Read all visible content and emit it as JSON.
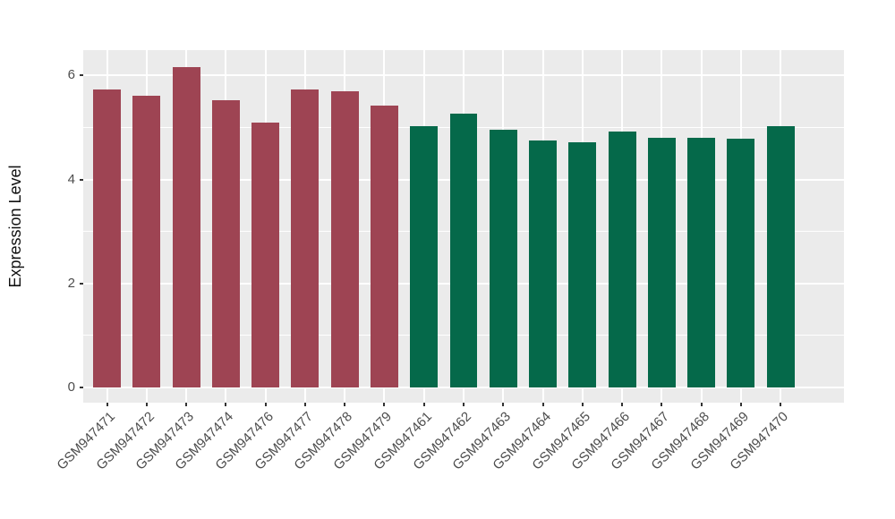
{
  "style": {
    "page_bg": "#FFFFFF",
    "panel_bg": "#EBEBEB",
    "grid_color": "#FFFFFF",
    "tick_mark_color": "#333333",
    "tick_label_color": "#4D4D4D",
    "axis_title_color": "#111111",
    "group_colors": {
      "group_747x": "#9E4453",
      "group_746x": "#05694A"
    }
  },
  "chart_data": {
    "type": "bar",
    "title": "",
    "xlabel": "",
    "ylabel": "Expression Level",
    "ylim": [
      0,
      6.49
    ],
    "yticks": [
      0,
      2,
      4,
      6
    ],
    "yminor": [
      1,
      3,
      5
    ],
    "grid": true,
    "legend": false,
    "x_label_angle": 45,
    "bars": [
      {
        "label": "GSM947471",
        "value": 5.73,
        "color": "#9E4453"
      },
      {
        "label": "GSM947472",
        "value": 5.61,
        "color": "#9E4453"
      },
      {
        "label": "GSM947473",
        "value": 6.16,
        "color": "#9E4453"
      },
      {
        "label": "GSM947474",
        "value": 5.52,
        "color": "#9E4453"
      },
      {
        "label": "GSM947476",
        "value": 5.09,
        "color": "#9E4453"
      },
      {
        "label": "GSM947477",
        "value": 5.73,
        "color": "#9E4453"
      },
      {
        "label": "GSM947478",
        "value": 5.69,
        "color": "#9E4453"
      },
      {
        "label": "GSM947479",
        "value": 5.42,
        "color": "#9E4453"
      },
      {
        "label": "GSM947461",
        "value": 5.03,
        "color": "#05694A"
      },
      {
        "label": "GSM947462",
        "value": 5.27,
        "color": "#05694A"
      },
      {
        "label": "GSM947463",
        "value": 4.96,
        "color": "#05694A"
      },
      {
        "label": "GSM947464",
        "value": 4.75,
        "color": "#05694A"
      },
      {
        "label": "GSM947465",
        "value": 4.71,
        "color": "#05694A"
      },
      {
        "label": "GSM947466",
        "value": 4.92,
        "color": "#05694A"
      },
      {
        "label": "GSM947467",
        "value": 4.81,
        "color": "#05694A"
      },
      {
        "label": "GSM947468",
        "value": 4.8,
        "color": "#05694A"
      },
      {
        "label": "GSM947469",
        "value": 4.78,
        "color": "#05694A"
      },
      {
        "label": "GSM947470",
        "value": 5.03,
        "color": "#05694A"
      }
    ]
  }
}
